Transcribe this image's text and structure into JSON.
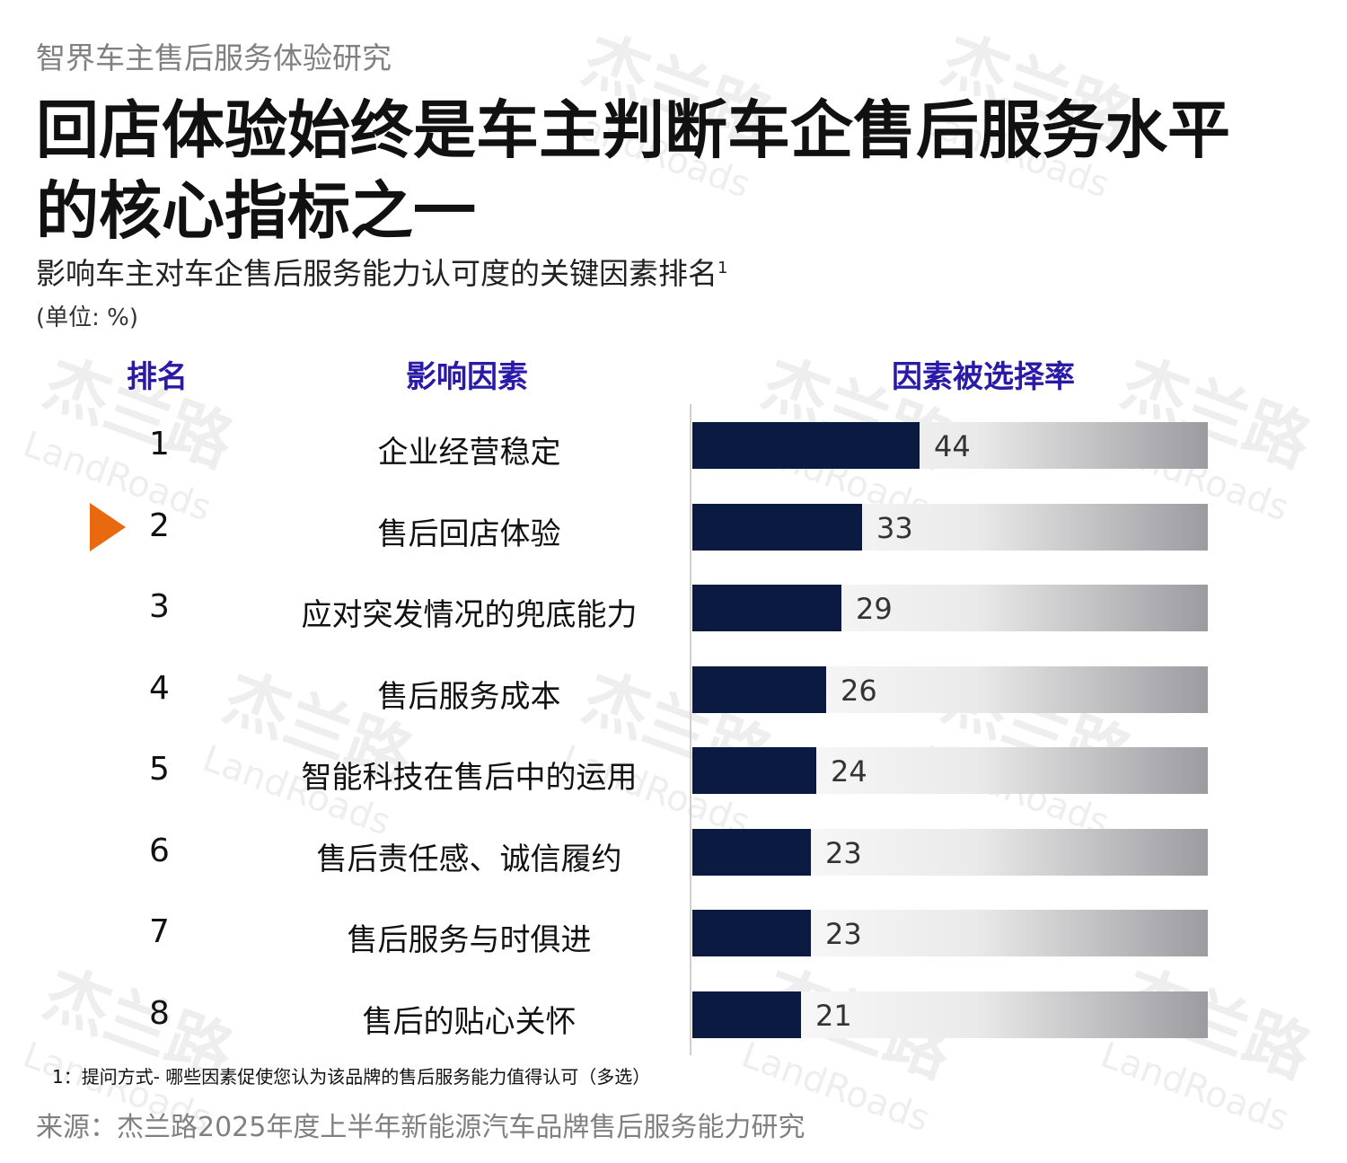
{
  "header": {
    "kicker": "智界车主售后服务体验研究",
    "title": "回店体验始终是车主判断车企售后服务水平的核心指标之一",
    "subtitle": "影响车主对车企售后服务能力认可度的关键因素排名",
    "subtitle_sup": "1",
    "unit": "(单位: %)"
  },
  "columns": {
    "rank": "排名",
    "factor": "影响因素",
    "rate": "因素被选择率"
  },
  "highlight_rank": 2,
  "colors": {
    "bar": "#0b1a40",
    "header": "#2a1aa8",
    "marker": "#e8690f"
  },
  "watermark": {
    "cn": "杰兰路",
    "en": "LandRoads"
  },
  "chart_data": {
    "type": "bar",
    "orientation": "horizontal",
    "categories": [
      "企业经营稳定",
      "售后回店体验",
      "应对突发情况的兜底能力",
      "售后服务成本",
      "智能科技在售后中的运用",
      "售后责任感、诚信履约",
      "售后服务与时俱进",
      "售后的贴心关怀"
    ],
    "ranks": [
      "1",
      "2",
      "3",
      "4",
      "5",
      "6",
      "7",
      "8"
    ],
    "values": [
      44,
      33,
      29,
      26,
      24,
      23,
      23,
      21
    ],
    "xlim": [
      0,
      100
    ],
    "grid": false
  },
  "footnote": "1：提问方式- 哪些因素促使您认为该品牌的售后服务能力值得认可（多选）",
  "source": "来源：杰兰路2025年度上半年新能源汽车品牌售后服务能力研究"
}
